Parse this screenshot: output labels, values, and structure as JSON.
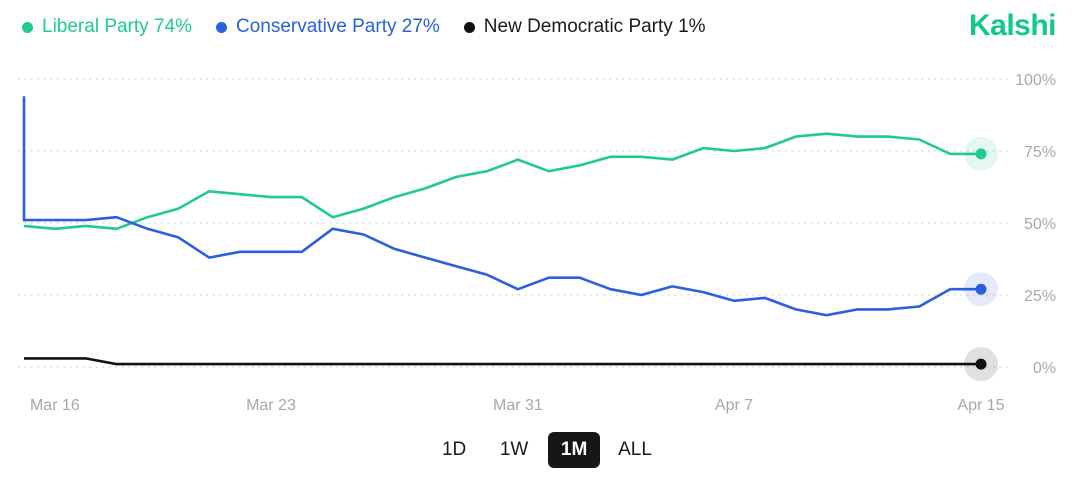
{
  "brand": {
    "name": "Kalshi",
    "color": "#10c98a"
  },
  "legend": [
    {
      "name": "Liberal Party",
      "pct": "74%",
      "color": "#1fcb8f"
    },
    {
      "name": "Conservative Party",
      "pct": "27%",
      "color": "#2b5fe0"
    },
    {
      "name": "New Democratic Party",
      "pct": "1%",
      "color": "#111111"
    }
  ],
  "range_buttons": [
    {
      "label": "1D",
      "active": false
    },
    {
      "label": "1W",
      "active": false
    },
    {
      "label": "1M",
      "active": true
    },
    {
      "label": "ALL",
      "active": false
    }
  ],
  "chart_data": {
    "type": "line",
    "x_range": [
      "2025-03-15",
      "2025-04-15"
    ],
    "x_ticks": [
      {
        "date": "2025-03-16",
        "label": "Mar 16"
      },
      {
        "date": "2025-03-23",
        "label": "Mar 23"
      },
      {
        "date": "2025-03-31",
        "label": "Mar 31"
      },
      {
        "date": "2025-04-07",
        "label": "Apr 7"
      },
      {
        "date": "2025-04-15",
        "label": "Apr 15"
      }
    ],
    "y_ticks": [
      {
        "value": 100,
        "label": "100%"
      },
      {
        "value": 75,
        "label": "75%"
      },
      {
        "value": 50,
        "label": "50%"
      },
      {
        "value": 25,
        "label": "25%"
      },
      {
        "value": 0,
        "label": "0%"
      }
    ],
    "ylim": [
      0,
      100
    ],
    "grid": "horizontal dotted",
    "series": [
      {
        "name": "Liberal Party",
        "color": "#1fcb8f",
        "points": [
          [
            "2025-03-15",
            49
          ],
          [
            "2025-03-16",
            48
          ],
          [
            "2025-03-17",
            49
          ],
          [
            "2025-03-18",
            48
          ],
          [
            "2025-03-19",
            52
          ],
          [
            "2025-03-20",
            55
          ],
          [
            "2025-03-21",
            61
          ],
          [
            "2025-03-22",
            60
          ],
          [
            "2025-03-23",
            59
          ],
          [
            "2025-03-24",
            59
          ],
          [
            "2025-03-25",
            52
          ],
          [
            "2025-03-26",
            55
          ],
          [
            "2025-03-27",
            59
          ],
          [
            "2025-03-28",
            62
          ],
          [
            "2025-03-29",
            66
          ],
          [
            "2025-03-30",
            68
          ],
          [
            "2025-03-31",
            72
          ],
          [
            "2025-04-01",
            68
          ],
          [
            "2025-04-02",
            70
          ],
          [
            "2025-04-03",
            73
          ],
          [
            "2025-04-04",
            73
          ],
          [
            "2025-04-05",
            72
          ],
          [
            "2025-04-06",
            76
          ],
          [
            "2025-04-07",
            75
          ],
          [
            "2025-04-08",
            76
          ],
          [
            "2025-04-09",
            80
          ],
          [
            "2025-04-10",
            81
          ],
          [
            "2025-04-11",
            80
          ],
          [
            "2025-04-12",
            80
          ],
          [
            "2025-04-13",
            79
          ],
          [
            "2025-04-14",
            74
          ],
          [
            "2025-04-15",
            74
          ]
        ]
      },
      {
        "name": "Conservative Party",
        "color": "#2b5fe0",
        "points": [
          [
            "2025-03-15",
            94
          ],
          [
            "2025-03-15",
            51
          ],
          [
            "2025-03-16",
            51
          ],
          [
            "2025-03-17",
            51
          ],
          [
            "2025-03-18",
            52
          ],
          [
            "2025-03-19",
            48
          ],
          [
            "2025-03-20",
            45
          ],
          [
            "2025-03-21",
            38
          ],
          [
            "2025-03-22",
            40
          ],
          [
            "2025-03-23",
            40
          ],
          [
            "2025-03-24",
            40
          ],
          [
            "2025-03-25",
            48
          ],
          [
            "2025-03-26",
            46
          ],
          [
            "2025-03-27",
            41
          ],
          [
            "2025-03-28",
            38
          ],
          [
            "2025-03-29",
            35
          ],
          [
            "2025-03-30",
            32
          ],
          [
            "2025-03-31",
            27
          ],
          [
            "2025-04-01",
            31
          ],
          [
            "2025-04-02",
            31
          ],
          [
            "2025-04-03",
            27
          ],
          [
            "2025-04-04",
            25
          ],
          [
            "2025-04-05",
            28
          ],
          [
            "2025-04-06",
            26
          ],
          [
            "2025-04-07",
            23
          ],
          [
            "2025-04-08",
            24
          ],
          [
            "2025-04-09",
            20
          ],
          [
            "2025-04-10",
            18
          ],
          [
            "2025-04-11",
            20
          ],
          [
            "2025-04-12",
            20
          ],
          [
            "2025-04-13",
            21
          ],
          [
            "2025-04-14",
            27
          ],
          [
            "2025-04-15",
            27
          ]
        ]
      },
      {
        "name": "New Democratic Party",
        "color": "#111111",
        "points": [
          [
            "2025-03-15",
            3
          ],
          [
            "2025-03-17",
            3
          ],
          [
            "2025-03-18",
            1
          ],
          [
            "2025-04-15",
            1
          ]
        ]
      }
    ]
  }
}
